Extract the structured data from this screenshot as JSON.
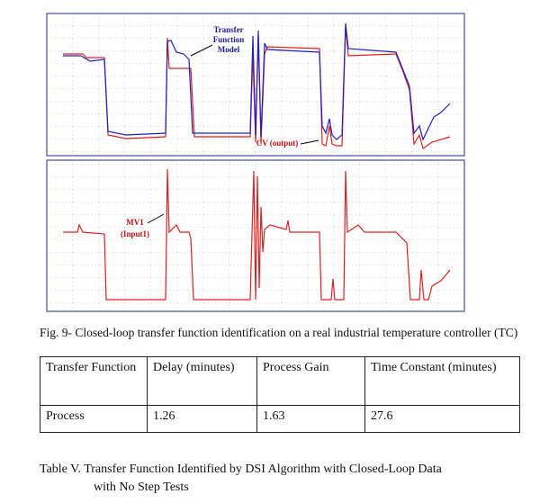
{
  "figure": {
    "model_label": [
      "Transfer",
      "Function",
      "Model"
    ],
    "cv_label": "CV (output)",
    "mv_label": [
      "MV1",
      "(Input1)"
    ],
    "caption": "Fig. 9- Closed-loop transfer function identification on a real industrial temperature controller (TC)"
  },
  "table": {
    "header": [
      "Transfer Function",
      "Delay (minutes)",
      "Process Gain",
      "Time Constant (minutes)"
    ],
    "rows": [
      [
        "Process",
        1.26,
        1.63,
        27.6
      ]
    ]
  },
  "table_caption": [
    "Table V.  Transfer Function Identified by DSI Algorithm with Closed-Loop Data",
    "with No Step Tests"
  ]
}
